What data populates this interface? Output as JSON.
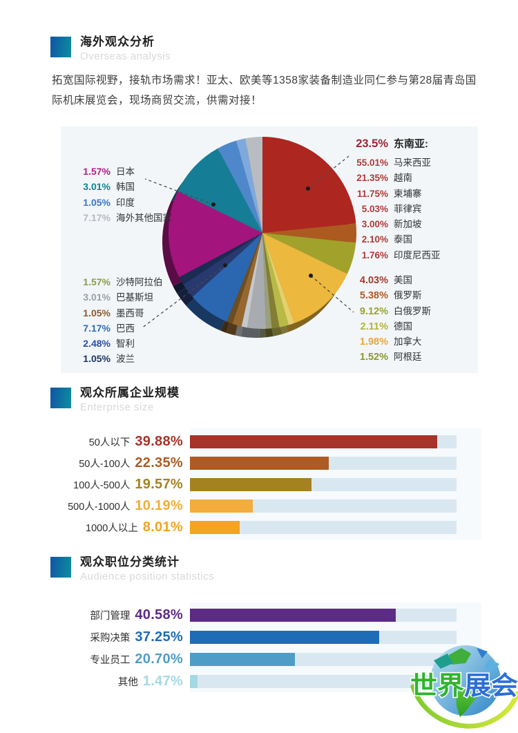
{
  "sections": {
    "overseas": {
      "title": "海外观众分析",
      "subtitle": "Overseas analysis",
      "description": "拓宽国际视野，接轨市场需求！亚太、欧美等1358家装备制造业同仁参与第28届青岛国际机床展览会，现场商贸交流，供需对接！"
    },
    "enterprise": {
      "title": "观众所属企业规模",
      "subtitle": "Enterprise size"
    },
    "position": {
      "title": "观众职位分类统计",
      "subtitle": "Audience position statistics"
    }
  },
  "chart_data": [
    {
      "type": "pie",
      "title": "海外观众分析",
      "unit": "%",
      "groups": {
        "top_left": [
          {
            "value": "1.57%",
            "label": "日本",
            "color": "#b01f86"
          },
          {
            "value": "3.01%",
            "label": "韩国",
            "color": "#157f96"
          },
          {
            "value": "1.05%",
            "label": "印度",
            "color": "#3a77c2"
          },
          {
            "value": "7.17%",
            "label": "海外其他国家",
            "color": "#b6babf"
          }
        ],
        "bottom_left": [
          {
            "value": "1.57%",
            "label": "沙特阿拉伯",
            "color": "#8b9a4a"
          },
          {
            "value": "3.01%",
            "label": "巴基斯坦",
            "color": "#9aa0a6"
          },
          {
            "value": "1.05%",
            "label": "墨西哥",
            "color": "#8d5a2a"
          },
          {
            "value": "7.17%",
            "label": "巴西",
            "color": "#2e6db4"
          },
          {
            "value": "2.48%",
            "label": "智利",
            "color": "#2a4fa2"
          },
          {
            "value": "1.05%",
            "label": "波兰",
            "color": "#20355f"
          }
        ],
        "top_right_header": {
          "value": "23.5%",
          "label": "东南亚:",
          "color": "#9e2336"
        },
        "top_right": [
          {
            "value": "55.01%",
            "label": "马来西亚",
            "color": "#ae3a38"
          },
          {
            "value": "21.35%",
            "label": "越南",
            "color": "#ae3a38"
          },
          {
            "value": "11.75%",
            "label": "柬埔寨",
            "color": "#ae3a38"
          },
          {
            "value": "5.03%",
            "label": "菲律宾",
            "color": "#ae3a38"
          },
          {
            "value": "3.00%",
            "label": "新加坡",
            "color": "#ae3a38"
          },
          {
            "value": "2.10%",
            "label": "泰国",
            "color": "#ae3a38"
          },
          {
            "value": "1.76%",
            "label": "印度尼西亚",
            "color": "#ae3a38"
          }
        ],
        "bottom_right": [
          {
            "value": "4.03%",
            "label": "美国",
            "color": "#a63a28"
          },
          {
            "value": "5.38%",
            "label": "俄罗斯",
            "color": "#b35a22"
          },
          {
            "value": "9.12%",
            "label": "白俄罗斯",
            "color": "#9aa42c"
          },
          {
            "value": "2.11%",
            "label": "德国",
            "color": "#b2b437"
          },
          {
            "value": "1.98%",
            "label": "加拿大",
            "color": "#e9a63a"
          },
          {
            "value": "1.52%",
            "label": "阿根廷",
            "color": "#8b972f"
          }
        ]
      },
      "slices": [
        {
          "label": "东南亚",
          "pct": 23.5,
          "color": "#ae2620"
        },
        {
          "label": "slice-rust",
          "pct": 3.2,
          "color": "#ad5a21"
        },
        {
          "label": "slice-olive",
          "pct": 5.4,
          "color": "#a1a22b"
        },
        {
          "label": "slice-gold",
          "pct": 12.5,
          "color": "#ecb83d"
        },
        {
          "label": "slice-pale-yellow",
          "pct": 1.0,
          "color": "#e5d06e"
        },
        {
          "label": "slice-yellow-green",
          "pct": 1.6,
          "color": "#b8ba48"
        },
        {
          "label": "slice-dark-olive",
          "pct": 1.3,
          "color": "#837d35"
        },
        {
          "label": "slice-sage",
          "pct": 1.0,
          "color": "#9aa07b"
        },
        {
          "label": "slice-gray",
          "pct": 3.2,
          "color": "#a8acb0"
        },
        {
          "label": "slice-light-gray",
          "pct": 1.0,
          "color": "#c6c9cc"
        },
        {
          "label": "slice-brown",
          "pct": 1.6,
          "color": "#96672f"
        },
        {
          "label": "slice-dark-brown",
          "pct": 1.0,
          "color": "#6e4d20"
        },
        {
          "label": "巴西",
          "pct": 7.2,
          "color": "#2b66b0"
        },
        {
          "label": "智利",
          "pct": 2.6,
          "color": "#27396e"
        },
        {
          "label": "波兰",
          "pct": 1.4,
          "color": "#1b2b52"
        },
        {
          "label": "slice-magenta",
          "pct": 14.8,
          "color": "#a3157d"
        },
        {
          "label": "slice-teal",
          "pct": 10.0,
          "color": "#157e96"
        },
        {
          "label": "slice-steel-blue",
          "pct": 3.4,
          "color": "#4e88ca"
        },
        {
          "label": "slice-light-blue",
          "pct": 1.6,
          "color": "#7fa9dc"
        },
        {
          "label": "海外其他国家",
          "pct": 2.9,
          "color": "#b9bdc1"
        }
      ]
    },
    {
      "type": "bar",
      "title": "观众所属企业规模",
      "xlim": [
        0,
        43
      ],
      "xmax": 43,
      "rows": [
        {
          "label": "50人以下",
          "value": 39.88,
          "display": "39.88%",
          "color": "#a5342a"
        },
        {
          "label": "50人-100人",
          "value": 22.35,
          "display": "22.35%",
          "color": "#ad5b22"
        },
        {
          "label": "100人-500人",
          "value": 19.57,
          "display": "19.57%",
          "color": "#a5821f"
        },
        {
          "label": "500人-1000人",
          "value": 10.19,
          "display": "10.19%",
          "color": "#f2ad3c"
        },
        {
          "label": "1000人以上",
          "value": 8.01,
          "display": "8.01%",
          "color": "#f4a41e"
        }
      ]
    },
    {
      "type": "bar",
      "title": "观众职位分类统计",
      "xlim": [
        0,
        52.5
      ],
      "xmax": 52.5,
      "rows": [
        {
          "label": "部门管理",
          "value": 40.58,
          "display": "40.58%",
          "color": "#5c2b86"
        },
        {
          "label": "采购决策",
          "value": 37.25,
          "display": "37.25%",
          "color": "#1e6cb5"
        },
        {
          "label": "专业员工",
          "value": 20.7,
          "display": "20.70%",
          "color": "#4d9dc6"
        },
        {
          "label": "其他",
          "value": 1.47,
          "display": "1.47%",
          "color": "#a5d8e4"
        }
      ]
    }
  ],
  "watermark": {
    "green": "世界",
    "blue": "展会"
  }
}
